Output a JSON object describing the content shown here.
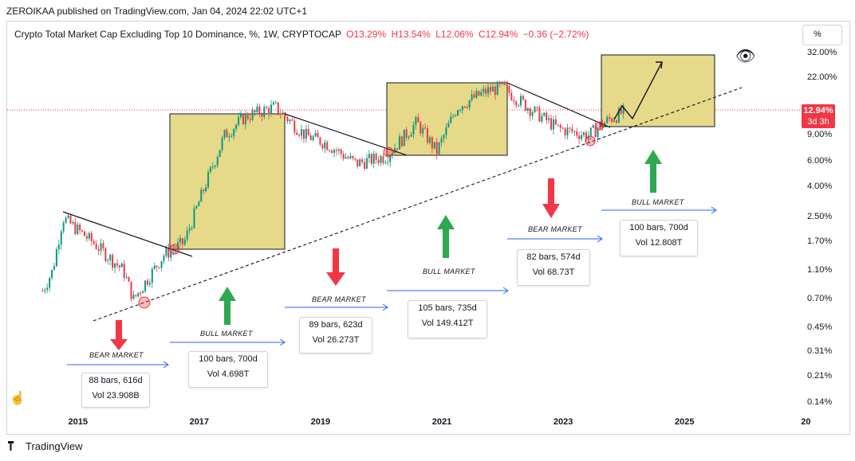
{
  "header": {
    "publisher_text": "ZEROIKAA published on TradingView.com, Jan 04, 2024 22:02 UTC+1"
  },
  "legend": {
    "title": "Crypto Total Market Cap Excluding Top 10 Dominance, %, 1W, CRYPTOCAP",
    "o_label": "O",
    "o_value": "13.29%",
    "h_label": "H",
    "h_value": "13.54%",
    "l_label": "L",
    "l_value": "12.06%",
    "c_label": "C",
    "c_value": "12.94%",
    "change": "−0.36 (−2.72%)"
  },
  "scale_button": "%",
  "price_tag": {
    "price": "12.94%",
    "countdown": "3d 3h"
  },
  "footer": {
    "brand": "TradingView"
  },
  "colors": {
    "up": "#089981",
    "down": "#f23645",
    "box_fill": "#e6d98a",
    "arrow_up": "#2fa84f",
    "arrow_down": "#f23645",
    "projection": "#2962ff"
  },
  "chart_data": {
    "type": "candlestick",
    "y_scale": "log",
    "ylim": [
      0.135,
      33
    ],
    "xlim": [
      "2014-02",
      "2026-12"
    ],
    "y_ticks": [
      "32.00%",
      "22.00%",
      "9.00%",
      "6.00%",
      "4.00%",
      "2.50%",
      "1.70%",
      "1.10%",
      "0.70%",
      "0.45%",
      "0.31%",
      "0.21%",
      "0.14%"
    ],
    "x_ticks": [
      "2015",
      "2017",
      "2019",
      "2021",
      "2023",
      "2025",
      "20"
    ],
    "last_close": 12.94,
    "series": [
      {
        "date": "2014-06",
        "value": 0.8
      },
      {
        "date": "2014-08",
        "value": 1.1
      },
      {
        "date": "2014-10",
        "value": 2.5
      },
      {
        "date": "2015-04",
        "value": 1.7
      },
      {
        "date": "2015-10",
        "value": 1.1
      },
      {
        "date": "2015-12",
        "value": 0.7
      },
      {
        "date": "2016-06",
        "value": 1.4
      },
      {
        "date": "2016-10",
        "value": 1.7
      },
      {
        "date": "2017-02",
        "value": 4.0
      },
      {
        "date": "2017-06",
        "value": 9.0
      },
      {
        "date": "2017-10",
        "value": 12.0
      },
      {
        "date": "2018-04",
        "value": 14.0
      },
      {
        "date": "2018-10",
        "value": 9.0
      },
      {
        "date": "2019-02",
        "value": 8.0
      },
      {
        "date": "2019-08",
        "value": 5.8
      },
      {
        "date": "2020-02",
        "value": 6.5
      },
      {
        "date": "2020-08",
        "value": 11.0
      },
      {
        "date": "2020-12",
        "value": 7.0
      },
      {
        "date": "2021-04",
        "value": 14.0
      },
      {
        "date": "2021-10",
        "value": 18.0
      },
      {
        "date": "2022-01",
        "value": 19.0
      },
      {
        "date": "2022-06",
        "value": 14.0
      },
      {
        "date": "2022-12",
        "value": 10.0
      },
      {
        "date": "2023-06",
        "value": 9.0
      },
      {
        "date": "2023-10",
        "value": 11.5
      },
      {
        "date": "2024-01",
        "value": 12.94
      }
    ],
    "annotations": [
      {
        "label": "BEAR MARKET",
        "bars": "88 bars, 616d",
        "vol": "Vol 23.908B"
      },
      {
        "label": "BULL MARKET",
        "bars": "100 bars, 700d",
        "vol": "Vol 4.698T"
      },
      {
        "label": "BEAR MARKET",
        "bars": "89 bars, 623d",
        "vol": "Vol 26.273T"
      },
      {
        "label": "BULL MARKET",
        "bars": "105 bars, 735d",
        "vol": "Vol 149.412T"
      },
      {
        "label": "BEAR MARKET",
        "bars": "82 bars, 574d",
        "vol": "Vol 68.73T"
      },
      {
        "label": "BULL MARKET",
        "bars": "100 bars, 700d",
        "vol": "Vol 12.808T"
      }
    ]
  }
}
